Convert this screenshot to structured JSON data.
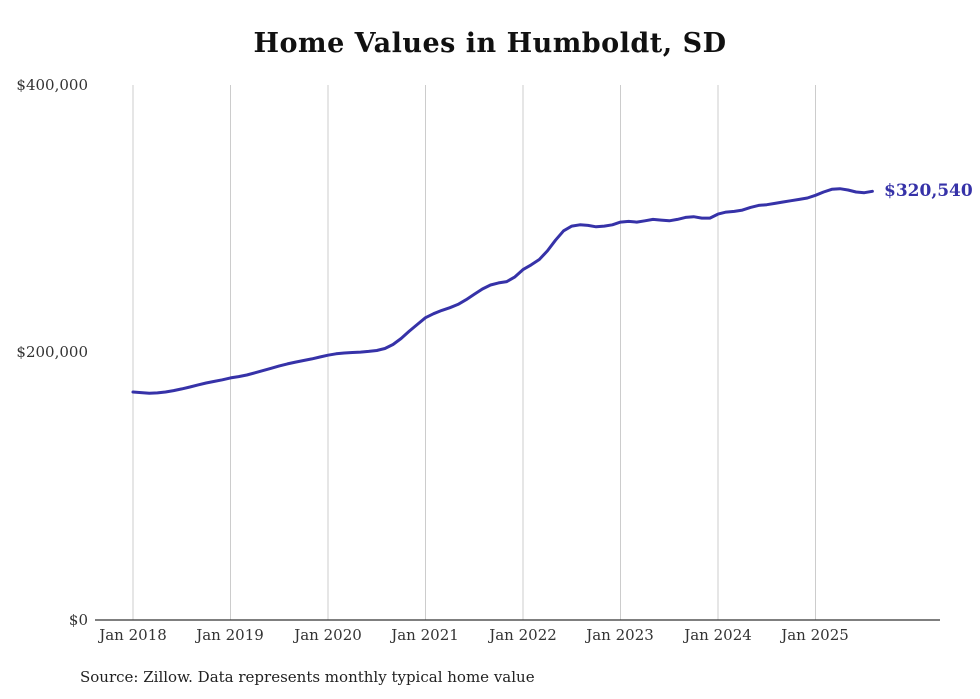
{
  "page": {
    "title": "Home Values in Humboldt, SD",
    "source_note": "Source: Zillow. Data represents monthly typical home value"
  },
  "chart_data": {
    "type": "line",
    "title": "Home Values in Humboldt, SD",
    "series_name": "Monthly typical home value",
    "x": [
      "2018-01",
      "2018-02",
      "2018-03",
      "2018-04",
      "2018-05",
      "2018-06",
      "2018-07",
      "2018-08",
      "2018-09",
      "2018-10",
      "2018-11",
      "2018-12",
      "2019-01",
      "2019-02",
      "2019-03",
      "2019-04",
      "2019-05",
      "2019-06",
      "2019-07",
      "2019-08",
      "2019-09",
      "2019-10",
      "2019-11",
      "2019-12",
      "2020-01",
      "2020-02",
      "2020-03",
      "2020-04",
      "2020-05",
      "2020-06",
      "2020-07",
      "2020-08",
      "2020-09",
      "2020-10",
      "2020-11",
      "2020-12",
      "2021-01",
      "2021-02",
      "2021-03",
      "2021-04",
      "2021-05",
      "2021-06",
      "2021-07",
      "2021-08",
      "2021-09",
      "2021-10",
      "2021-11",
      "2021-12",
      "2022-01",
      "2022-02",
      "2022-03",
      "2022-04",
      "2022-05",
      "2022-06",
      "2022-07",
      "2022-08",
      "2022-09",
      "2022-10",
      "2022-11",
      "2022-12",
      "2023-01",
      "2023-02",
      "2023-03",
      "2023-04",
      "2023-05",
      "2023-06",
      "2023-07",
      "2023-08",
      "2023-09",
      "2023-10",
      "2023-11",
      "2023-12",
      "2024-01",
      "2024-02",
      "2024-03",
      "2024-04",
      "2024-05",
      "2024-06",
      "2024-07",
      "2024-08",
      "2024-09",
      "2024-10",
      "2024-11",
      "2024-12",
      "2025-01",
      "2025-02",
      "2025-03",
      "2025-04",
      "2025-05",
      "2025-06",
      "2025-07",
      "2025-08"
    ],
    "values": [
      170500,
      170000,
      169600,
      169800,
      170500,
      171500,
      172800,
      174200,
      175800,
      177200,
      178400,
      179600,
      181000,
      182000,
      183200,
      184800,
      186500,
      188200,
      190000,
      191500,
      192800,
      194000,
      195200,
      196600,
      198000,
      199000,
      199600,
      200000,
      200300,
      200800,
      201500,
      203000,
      206000,
      210500,
      216000,
      221000,
      226000,
      229000,
      231500,
      233500,
      236000,
      239500,
      243500,
      247500,
      250500,
      252000,
      253000,
      256500,
      262000,
      265500,
      269500,
      276000,
      284000,
      291000,
      294500,
      295500,
      295000,
      294000,
      294500,
      295500,
      297500,
      298000,
      297500,
      298500,
      299500,
      299000,
      298500,
      299500,
      301000,
      301500,
      300500,
      300500,
      303500,
      305000,
      305500,
      306500,
      308500,
      310000,
      310500,
      311500,
      312500,
      313500,
      314500,
      315500,
      317500,
      320000,
      322000,
      322500,
      321500,
      320000,
      319500,
      320540
    ],
    "ylim": [
      0,
      400000
    ],
    "yticks": [
      0,
      200000,
      400000
    ],
    "ytick_labels": [
      "$0",
      "$200,000",
      "$400,000"
    ],
    "xtick_labels": [
      "Jan 2018",
      "Jan 2019",
      "Jan 2020",
      "Jan 2021",
      "Jan 2022",
      "Jan 2023",
      "Jan 2024",
      "Jan 2025"
    ],
    "end_label": "$320,540",
    "latest_value": 320540,
    "line_color": "#3632a8",
    "grid_color": "#cccccc",
    "axis_color": "#333333",
    "grid": "vertical-only",
    "legend_position": "none",
    "source": "Source: Zillow. Data represents monthly typical home value"
  }
}
